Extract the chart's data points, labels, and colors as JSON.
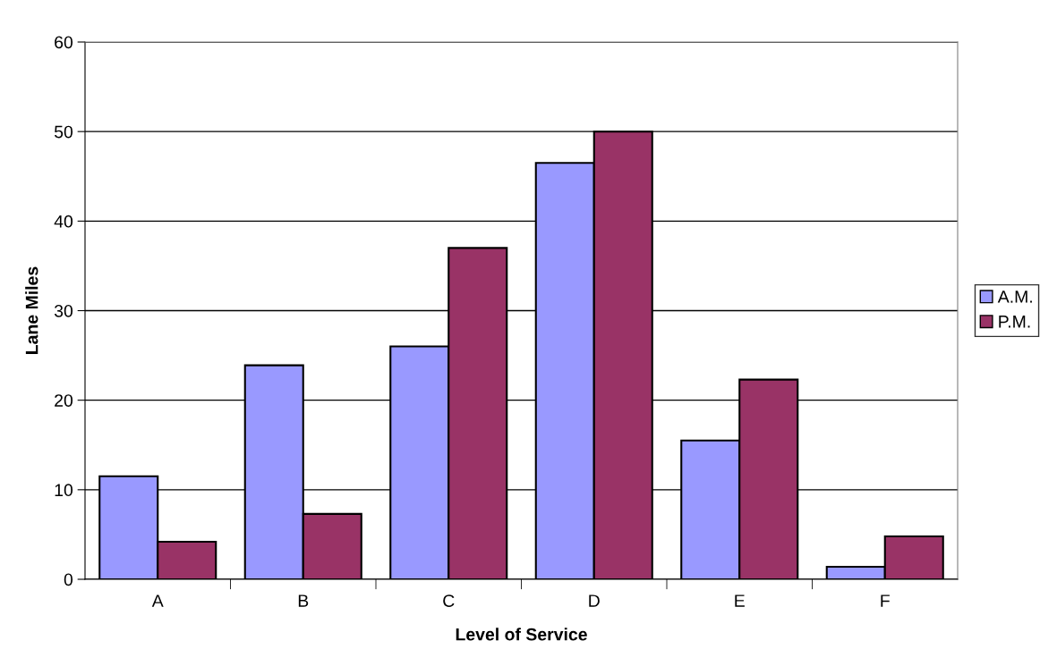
{
  "chart_data": {
    "type": "bar",
    "xlabel": "Level of Service",
    "ylabel": "Lane Miles",
    "categories": [
      "A",
      "B",
      "C",
      "D",
      "E",
      "F"
    ],
    "series": [
      {
        "name": "A.M.",
        "color": "#9999ff",
        "values": [
          11.5,
          23.9,
          26,
          46.5,
          15.5,
          1.4
        ]
      },
      {
        "name": "P.M.",
        "color": "#993366",
        "values": [
          4.2,
          7.3,
          37,
          50,
          22.3,
          4.8
        ]
      }
    ],
    "ylim": [
      0,
      60
    ],
    "yticks": [
      0,
      10,
      20,
      30,
      40,
      50,
      60
    ],
    "grid": "y",
    "legend": "right"
  }
}
